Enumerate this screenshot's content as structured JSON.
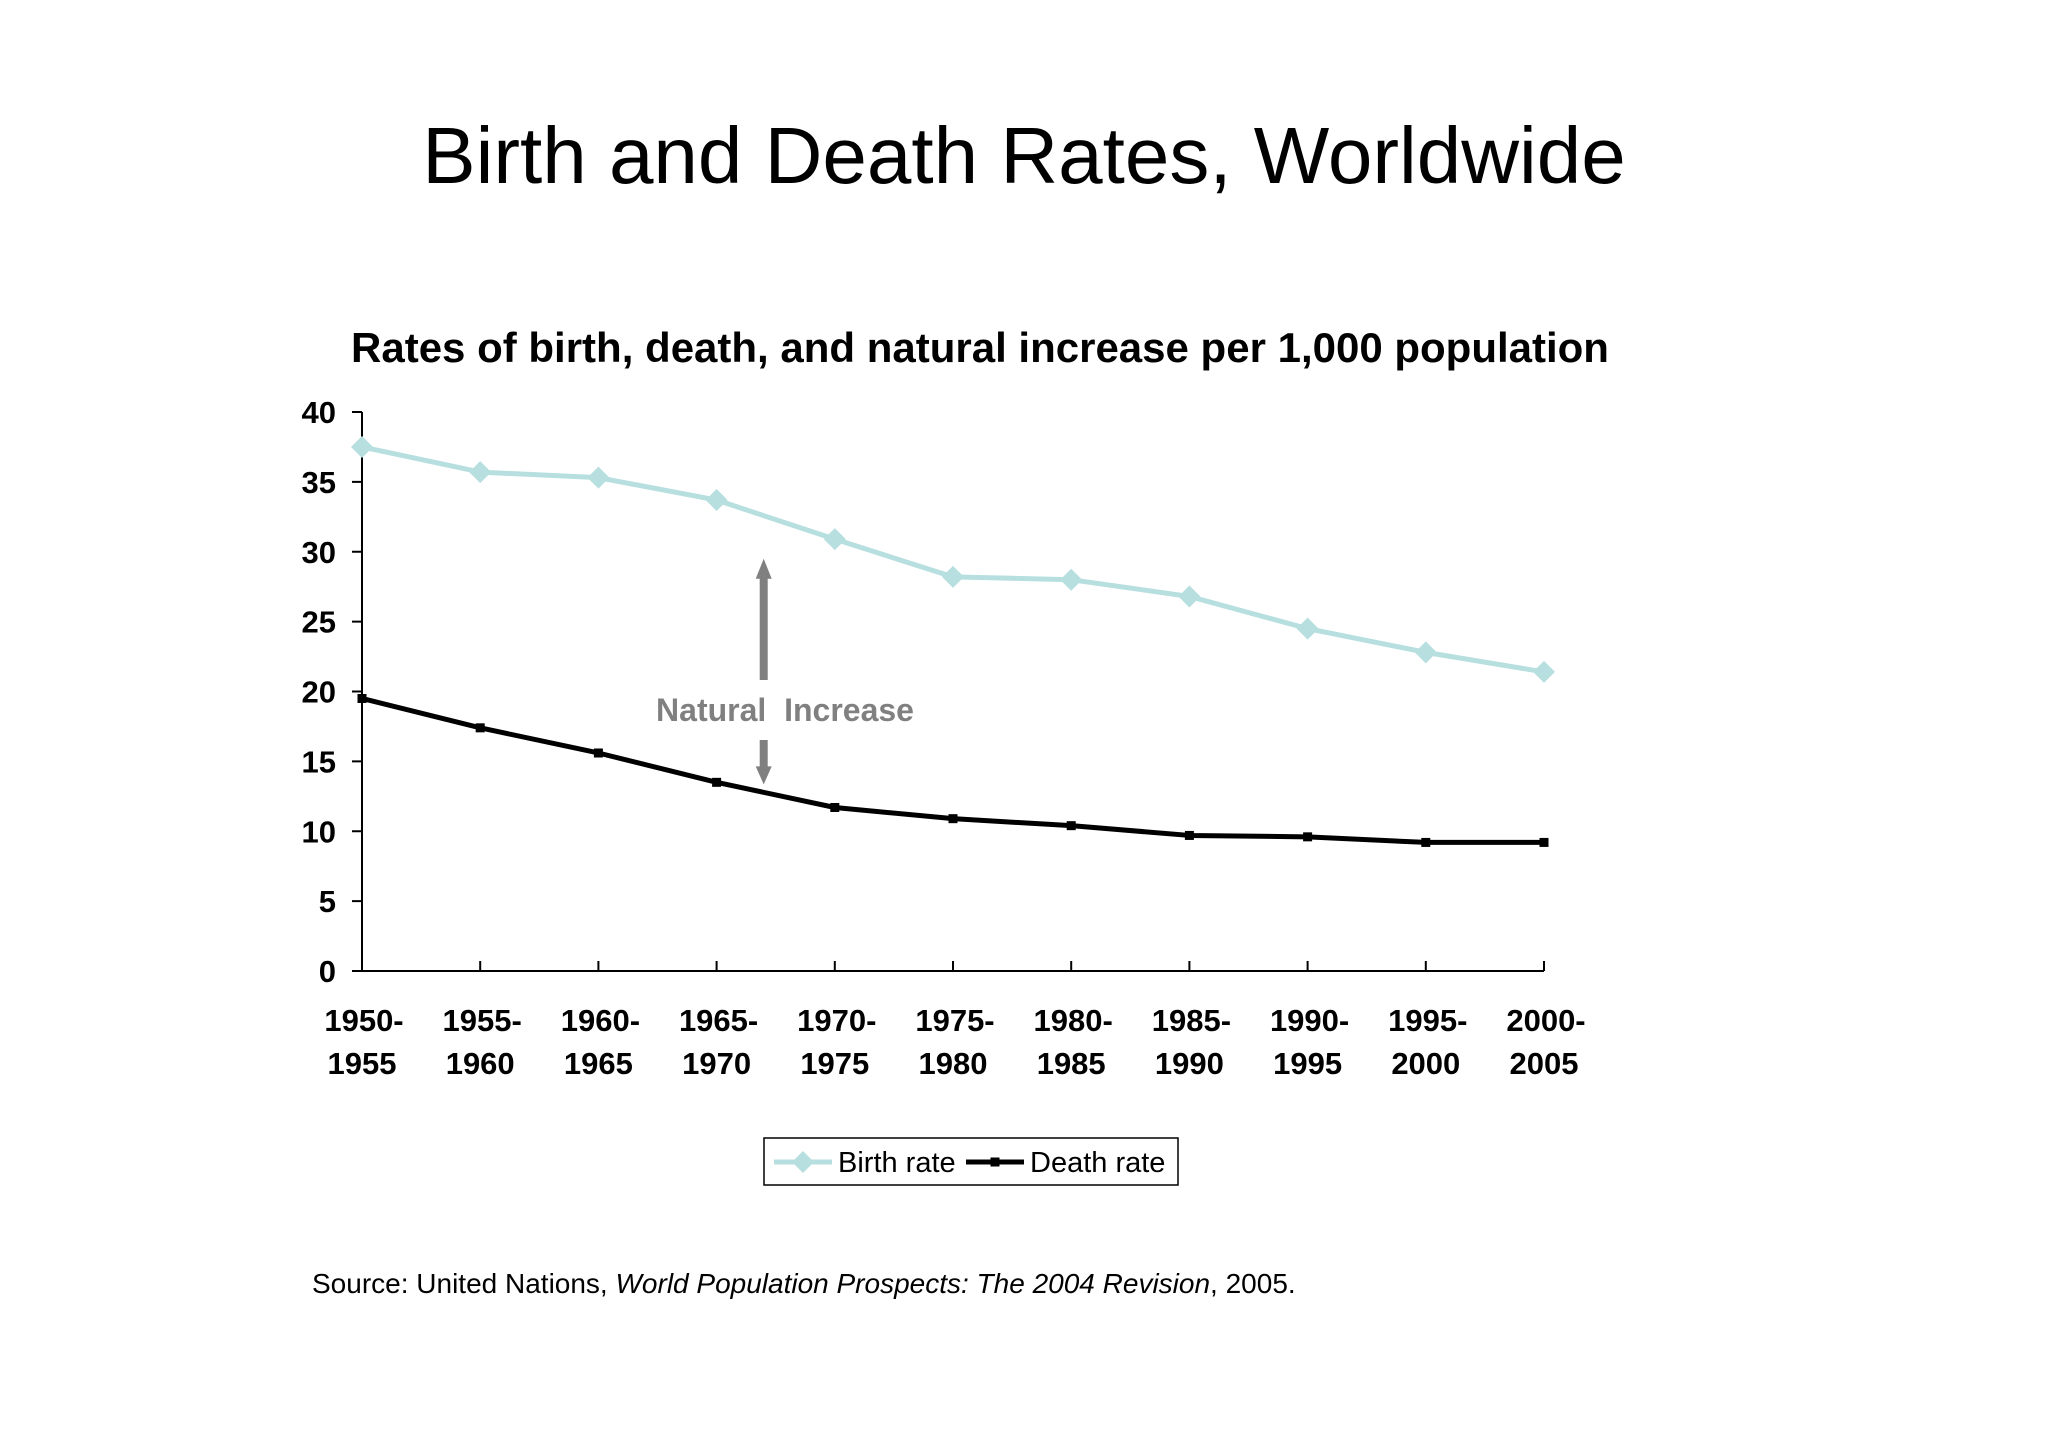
{
  "page": {
    "title": "Birth and Death Rates, Worldwide",
    "source": {
      "prefix": "Source: United Nations, ",
      "italic": "World Population Prospects: The 2004 Revision",
      "suffix": ", 2005."
    }
  },
  "chart_data": {
    "type": "line",
    "title": "Rates of birth, death, and natural increase per 1,000 population",
    "xlabel": "",
    "ylabel": "",
    "ylim": [
      0,
      40
    ],
    "yticks": [
      "0",
      "5",
      "10",
      "15",
      "20",
      "25",
      "30",
      "35",
      "40"
    ],
    "categories": [
      [
        "1950-",
        "1955"
      ],
      [
        "1955-",
        "1960"
      ],
      [
        "1960-",
        "1965"
      ],
      [
        "1965-",
        "1970"
      ],
      [
        "1970-",
        "1975"
      ],
      [
        "1975-",
        "1980"
      ],
      [
        "1980-",
        "1985"
      ],
      [
        "1985-",
        "1990"
      ],
      [
        "1990-",
        "1995"
      ],
      [
        "1995-",
        "2000"
      ],
      [
        "2000-",
        "2005"
      ]
    ],
    "series": [
      {
        "name": "Birth rate",
        "color": "#b7dfdf",
        "marker": "diamond",
        "values": [
          37.5,
          35.7,
          35.3,
          33.7,
          30.9,
          28.2,
          28.0,
          26.8,
          24.5,
          22.8,
          21.4
        ]
      },
      {
        "name": "Death rate",
        "color": "#000000",
        "marker": "square",
        "values": [
          19.5,
          17.4,
          15.6,
          13.5,
          11.7,
          10.9,
          10.4,
          9.7,
          9.6,
          9.2,
          9.2
        ]
      }
    ],
    "grid": false,
    "legend": "bottom",
    "annotation": {
      "text": "Natural  Increase",
      "color": "#808080",
      "category_between": [
        3,
        4
      ],
      "arrow_from": 13.5,
      "arrow_to": 29.5
    }
  }
}
